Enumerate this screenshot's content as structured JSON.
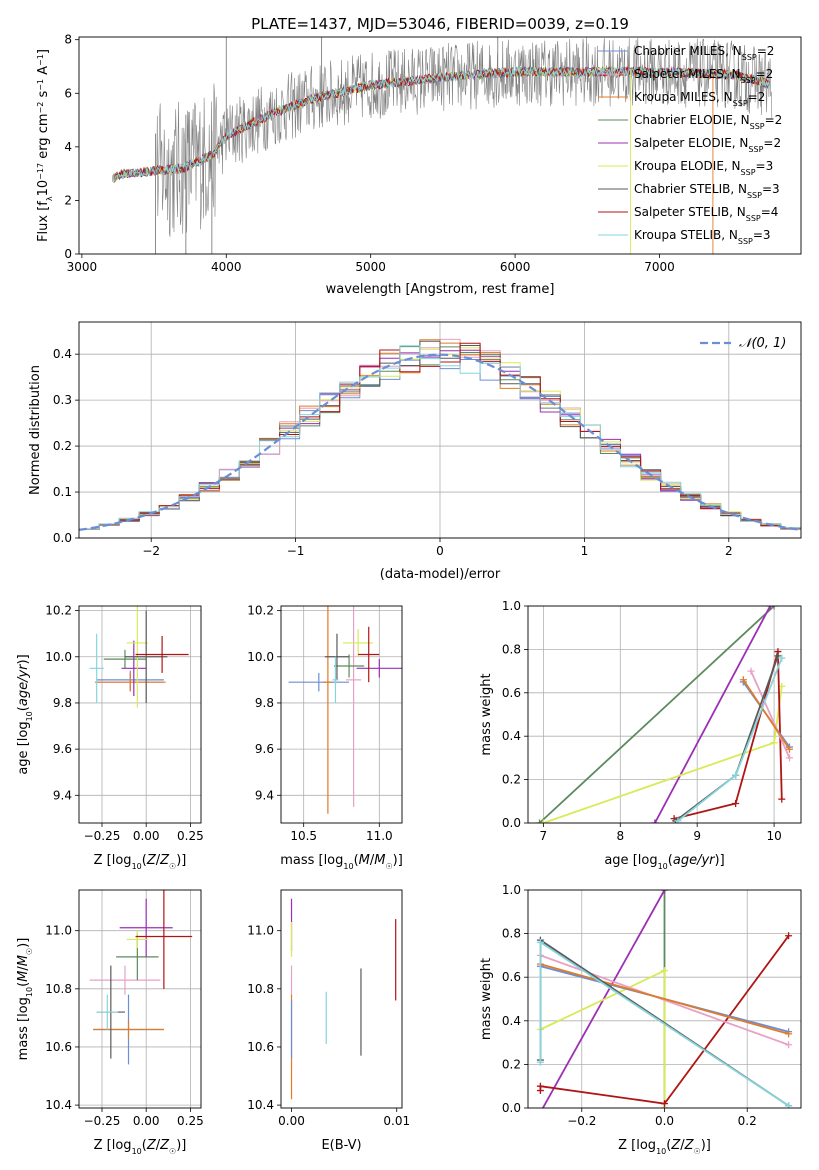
{
  "title": "PLATE=1437, MJD=53046, FIBERID=0039, z=0.19",
  "colors": {
    "Chabrier MILES": "#6b8ed6",
    "Salpeter MILES": "#e8a0c4",
    "Kroupa MILES": "#e07b28",
    "Chabrier ELODIE": "#5c8a5c",
    "Salpeter ELODIE": "#9b2fb5",
    "Kroupa ELODIE": "#d8ea55",
    "Chabrier STELIB": "#5a5a5a",
    "Salpeter STELIB": "#b01515",
    "Kroupa STELIB": "#86d4dc"
  },
  "chart_data": [
    {
      "id": "spectrum",
      "type": "line",
      "xlabel": "wavelength [Angstrom, rest frame]",
      "ylabel": "Flux [f_λ 10^-17 erg cm^-2 s^-1 A^-1]",
      "xlim": [
        2980,
        7980
      ],
      "ylim": [
        0,
        8.1
      ],
      "xticks": [
        "3000",
        "4000",
        "5000",
        "6000",
        "7000"
      ],
      "yticks": [
        "0",
        "2",
        "4",
        "6",
        "8"
      ],
      "legend_position": "right",
      "legend": [
        {
          "model": "Chabrier MILES",
          "nssp": "2"
        },
        {
          "model": "Salpeter MILES",
          "nssp": "2"
        },
        {
          "model": "Kroupa MILES",
          "nssp": "2"
        },
        {
          "model": "Chabrier ELODIE",
          "nssp": "2"
        },
        {
          "model": "Salpeter ELODIE",
          "nssp": "2"
        },
        {
          "model": "Kroupa ELODIE",
          "nssp": "3"
        },
        {
          "model": "Chabrier STELIB",
          "nssp": "3"
        },
        {
          "model": "Salpeter STELIB",
          "nssp": "4"
        },
        {
          "model": "Kroupa STELIB",
          "nssp": "3"
        }
      ],
      "data_color": "#808080",
      "continuum": {
        "x": [
          3200,
          3300,
          3500,
          3700,
          3900,
          4000,
          4300,
          4600,
          5000,
          5500,
          6000,
          6500,
          7000,
          7500,
          7800
        ],
        "y": [
          2.8,
          3.0,
          3.1,
          3.2,
          3.7,
          4.4,
          5.2,
          5.8,
          6.3,
          6.6,
          6.8,
          6.8,
          6.8,
          6.7,
          6.3
        ]
      }
    },
    {
      "id": "residuals",
      "type": "line",
      "xlabel": "(data-model)/error",
      "ylabel": "Normed distribution",
      "xlim": [
        -2.5,
        2.5
      ],
      "ylim": [
        0,
        0.47
      ],
      "xticks": [
        "−2",
        "−1",
        "0",
        "1",
        "2"
      ],
      "yticks": [
        "0.0",
        "0.1",
        "0.2",
        "0.3",
        "0.4"
      ],
      "grid": true,
      "legend_position": "top-right",
      "reference_curve": {
        "label": "𝒩(0, 1)",
        "mean": 0,
        "sigma": 1,
        "color": "#6b8ed6"
      }
    },
    {
      "id": "age-vs-Z",
      "type": "scatter",
      "xlabel": "Z [log10(Z/Z☉)]",
      "ylabel": "age [log10(age/yr)]",
      "xlim": [
        -0.38,
        0.31
      ],
      "ylim": [
        9.28,
        10.22
      ],
      "xticks": [
        "−0.25",
        "0.00",
        "0.25"
      ],
      "yticks": [
        "9.4",
        "9.6",
        "9.8",
        "10.0",
        "10.2"
      ],
      "grid": true,
      "points": [
        {
          "model": "Chabrier MILES",
          "x": -0.09,
          "y": 9.9,
          "xerr": 0.19,
          "yerr": 0.04
        },
        {
          "model": "Salpeter MILES",
          "x": -0.09,
          "y": 9.89,
          "xerr": 0.19,
          "yerr": 0.04
        },
        {
          "model": "Kroupa MILES",
          "x": -0.09,
          "y": 9.89,
          "xerr": 0.2,
          "yerr": 0.04
        },
        {
          "model": "Chabrier ELODIE",
          "x": -0.12,
          "y": 9.99,
          "xerr": 0.12,
          "yerr": 0.04
        },
        {
          "model": "Salpeter ELODIE",
          "x": -0.07,
          "y": 9.95,
          "xerr": 0.07,
          "yerr": 0.12
        },
        {
          "model": "Kroupa ELODIE",
          "x": -0.05,
          "y": 10.06,
          "xerr": 0.06,
          "yerr": 0.28
        },
        {
          "model": "Chabrier STELIB",
          "x": 0.0,
          "y": 10.0,
          "xerr": 0.12,
          "yerr": 0.2
        },
        {
          "model": "Salpeter STELIB",
          "x": 0.09,
          "y": 10.01,
          "xerr": 0.15,
          "yerr": 0.08
        },
        {
          "model": "Kroupa STELIB",
          "x": -0.28,
          "y": 9.95,
          "xerr": 0.04,
          "yerr": 0.15
        }
      ]
    },
    {
      "id": "age-vs-mass",
      "type": "scatter",
      "xlabel": "mass [log10(M/M☉)]",
      "ylabel": "",
      "xlim": [
        10.35,
        11.15
      ],
      "ylim": [
        9.28,
        10.22
      ],
      "xticks": [
        "10.5",
        "11.0"
      ],
      "yticks": [
        "9.4",
        "9.6",
        "9.8",
        "10.0",
        "10.2"
      ],
      "grid": true,
      "points": [
        {
          "model": "Chabrier MILES",
          "x": 10.6,
          "y": 9.89,
          "xerr": 0.2,
          "yerr": 0.04
        },
        {
          "model": "Salpeter MILES",
          "x": 10.83,
          "y": 9.9,
          "xerr": 0.05,
          "yerr": 0.55
        },
        {
          "model": "Kroupa MILES",
          "x": 10.66,
          "y": 9.89,
          "xerr": 0.03,
          "yerr": 0.57
        },
        {
          "model": "Chabrier ELODIE",
          "x": 10.8,
          "y": 9.96,
          "xerr": 0.1,
          "yerr": 0.05
        },
        {
          "model": "Salpeter ELODIE",
          "x": 11.0,
          "y": 9.95,
          "xerr": 0.15,
          "yerr": 0.04
        },
        {
          "model": "Kroupa ELODIE",
          "x": 10.86,
          "y": 10.06,
          "xerr": 0.1,
          "yerr": 0.06
        },
        {
          "model": "Chabrier STELIB",
          "x": 10.72,
          "y": 10.0,
          "xerr": 0.08,
          "yerr": 0.1
        },
        {
          "model": "Salpeter STELIB",
          "x": 10.93,
          "y": 10.01,
          "xerr": 0.07,
          "yerr": 0.12
        },
        {
          "model": "Kroupa STELIB",
          "x": 10.71,
          "y": 9.9,
          "xerr": 0.02,
          "yerr": 0.1
        }
      ]
    },
    {
      "id": "weight-vs-age",
      "type": "line",
      "xlabel": "age [log10(age/yr)]",
      "ylabel": "mass weight",
      "xlim": [
        6.8,
        10.35
      ],
      "ylim": [
        0,
        1
      ],
      "xticks": [
        "7",
        "8",
        "9",
        "10"
      ],
      "yticks": [
        "0.0",
        "0.2",
        "0.4",
        "0.6",
        "0.8",
        "1.0"
      ],
      "grid": true,
      "series": [
        {
          "model": "Chabrier ELODIE",
          "x": [
            6.95,
            10.0
          ],
          "y": [
            0.0,
            1.0
          ]
        },
        {
          "model": "Salpeter ELODIE",
          "x": [
            8.45,
            9.95
          ],
          "y": [
            0.0,
            1.0
          ]
        },
        {
          "model": "Kroupa ELODIE",
          "x": [
            7.0,
            10.0,
            10.1
          ],
          "y": [
            0.0,
            0.37,
            0.63
          ]
        },
        {
          "model": "Salpeter STELIB",
          "x": [
            8.7,
            9.5,
            10.05,
            10.1
          ],
          "y": [
            0.02,
            0.09,
            0.79,
            0.11
          ]
        },
        {
          "model": "Chabrier MILES",
          "x": [
            9.6,
            10.2
          ],
          "y": [
            0.65,
            0.35
          ]
        },
        {
          "model": "Salpeter MILES",
          "x": [
            9.7,
            10.2
          ],
          "y": [
            0.7,
            0.3
          ]
        },
        {
          "model": "Kroupa MILES",
          "x": [
            9.6,
            10.2
          ],
          "y": [
            0.66,
            0.34
          ]
        },
        {
          "model": "Chabrier STELIB",
          "x": [
            8.72,
            9.5,
            10.05
          ],
          "y": [
            0.01,
            0.22,
            0.77
          ]
        },
        {
          "model": "Kroupa STELIB",
          "x": [
            8.75,
            9.5,
            10.1
          ],
          "y": [
            0.01,
            0.22,
            0.76
          ]
        }
      ]
    },
    {
      "id": "mass-vs-Z",
      "type": "scatter",
      "xlabel": "Z [log10(Z/Z☉)]",
      "ylabel": "mass [log10(M/M☉)]",
      "xlim": [
        -0.38,
        0.31
      ],
      "ylim": [
        10.39,
        11.14
      ],
      "xticks": [
        "−0.25",
        "0.00",
        "0.25"
      ],
      "yticks": [
        "10.4",
        "10.6",
        "10.8",
        "11.0"
      ],
      "grid": true,
      "points": [
        {
          "model": "Chabrier MILES",
          "x": -0.1,
          "y": 10.66,
          "xerr": 0.2,
          "yerr": 0.12
        },
        {
          "model": "Salpeter MILES",
          "x": -0.12,
          "y": 10.83,
          "xerr": 0.2,
          "yerr": 0.05
        },
        {
          "model": "Kroupa MILES",
          "x": -0.1,
          "y": 10.66,
          "xerr": 0.2,
          "yerr": 0.03
        },
        {
          "model": "Chabrier ELODIE",
          "x": -0.05,
          "y": 10.91,
          "xerr": 0.12,
          "yerr": 0.08
        },
        {
          "model": "Salpeter ELODIE",
          "x": 0.0,
          "y": 11.01,
          "xerr": 0.15,
          "yerr": 0.1
        },
        {
          "model": "Kroupa ELODIE",
          "x": -0.05,
          "y": 10.97,
          "xerr": 0.06,
          "yerr": 0.03
        },
        {
          "model": "Chabrier STELIB",
          "x": -0.2,
          "y": 10.72,
          "xerr": 0.08,
          "yerr": 0.16
        },
        {
          "model": "Salpeter STELIB",
          "x": 0.1,
          "y": 10.98,
          "xerr": 0.16,
          "yerr": 0.18
        },
        {
          "model": "Kroupa STELIB",
          "x": -0.22,
          "y": 10.72,
          "xerr": 0.06,
          "yerr": 0.06
        }
      ]
    },
    {
      "id": "mass-vs-ebv",
      "type": "scatter",
      "xlabel": "E(B-V)",
      "ylabel": "",
      "xlim": [
        -0.001,
        0.0105
      ],
      "ylim": [
        10.39,
        11.14
      ],
      "xticks": [
        "0.00",
        "0.01"
      ],
      "yticks": [
        "10.4",
        "10.6",
        "10.8",
        "11.0"
      ],
      "points": [
        {
          "model": "Kroupa MILES",
          "x": 0.0,
          "y": 10.6,
          "yerr": 0.18
        },
        {
          "model": "Salpeter MILES",
          "x": 0.0,
          "y": 10.83,
          "yerr": 0.05
        },
        {
          "model": "Chabrier MILES",
          "x": 0.0,
          "y": 10.66,
          "yerr": 0.1
        },
        {
          "model": "Salpeter ELODIE",
          "x": 0.0,
          "y": 11.02,
          "yerr": 0.09
        },
        {
          "model": "Kroupa ELODIE",
          "x": 0.0,
          "y": 10.97,
          "yerr": 0.06
        },
        {
          "model": "Kroupa STELIB",
          "x": 0.0033,
          "y": 10.7,
          "yerr": 0.09
        },
        {
          "model": "Chabrier STELIB",
          "x": 0.0066,
          "y": 10.72,
          "yerr": 0.15
        },
        {
          "model": "Salpeter STELIB",
          "x": 0.0099,
          "y": 10.9,
          "yerr": 0.14
        }
      ]
    },
    {
      "id": "weight-vs-Z",
      "type": "line",
      "xlabel": "Z [log10(Z/Z☉)]",
      "ylabel": "mass weight",
      "xlim": [
        -0.33,
        0.33
      ],
      "ylim": [
        0,
        1
      ],
      "xticks": [
        "−0.2",
        "0.0",
        "0.2"
      ],
      "yticks": [
        "0.0",
        "0.2",
        "0.4",
        "0.6",
        "0.8",
        "1.0"
      ],
      "grid": true,
      "series": [
        {
          "model": "Chabrier ELODIE",
          "x": [
            0.0,
            0.0
          ],
          "y": [
            0.0,
            1.0
          ]
        },
        {
          "model": "Salpeter ELODIE",
          "x": [
            -0.3,
            0.0
          ],
          "y": [
            -0.02,
            1.0
          ]
        },
        {
          "model": "Kroupa ELODIE",
          "x": [
            -0.3,
            0.0,
            0.0
          ],
          "y": [
            0.36,
            0.63,
            0.0
          ]
        },
        {
          "model": "Salpeter STELIB",
          "x": [
            -0.3,
            -0.3,
            0.0,
            0.3
          ],
          "y": [
            0.08,
            0.1,
            0.02,
            0.79
          ]
        },
        {
          "model": "Chabrier MILES",
          "x": [
            -0.3,
            0.3
          ],
          "y": [
            0.65,
            0.35
          ]
        },
        {
          "model": "Salpeter MILES",
          "x": [
            -0.3,
            0.3
          ],
          "y": [
            0.7,
            0.29
          ]
        },
        {
          "model": "Kroupa MILES",
          "x": [
            -0.3,
            0.3
          ],
          "y": [
            0.66,
            0.34
          ]
        },
        {
          "model": "Chabrier STELIB",
          "x": [
            -0.3,
            -0.3,
            0.3
          ],
          "y": [
            0.22,
            0.77,
            0.01
          ]
        },
        {
          "model": "Kroupa STELIB",
          "x": [
            -0.3,
            -0.3,
            0.3
          ],
          "y": [
            0.21,
            0.76,
            0.01
          ]
        }
      ]
    }
  ]
}
